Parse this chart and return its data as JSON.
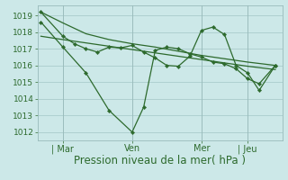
{
  "bg_color": "#cce8e8",
  "grid_color": "#aacccc",
  "line_color": "#2d6a2d",
  "xlabel": "Pression niveau de la mer( hPa )",
  "xlabel_fontsize": 8.5,
  "ylabel_fontsize": 6.5,
  "yticks": [
    1012,
    1013,
    1014,
    1015,
    1016,
    1017,
    1018,
    1019
  ],
  "ylim": [
    1011.5,
    1019.6
  ],
  "xtick_labels": [
    "| Mar",
    "Ven",
    "Mer",
    "| Jeu"
  ],
  "xtick_positions": [
    1,
    4,
    7,
    9
  ],
  "xlim": [
    -0.1,
    10.5
  ],
  "line1_x": [
    0.05,
    1,
    2,
    3,
    4,
    5,
    6,
    7,
    8,
    9,
    10.2
  ],
  "line1_y": [
    1019.2,
    1018.55,
    1017.9,
    1017.55,
    1017.3,
    1017.1,
    1016.85,
    1016.6,
    1016.4,
    1016.2,
    1016.0
  ],
  "line2_x": [
    0.05,
    1,
    2,
    3,
    4,
    5,
    6,
    7,
    8,
    9,
    10.2
  ],
  "line2_y": [
    1017.75,
    1017.55,
    1017.35,
    1017.15,
    1016.95,
    1016.75,
    1016.55,
    1016.35,
    1016.15,
    1015.95,
    1015.75
  ],
  "line3_x": [
    0.05,
    1,
    2,
    3,
    4,
    4.5,
    5,
    5.5,
    6,
    6.5,
    7,
    7.5,
    8,
    8.5,
    9,
    9.5,
    10.2
  ],
  "line3_y": [
    1018.6,
    1017.1,
    1015.55,
    1013.3,
    1012.0,
    1013.5,
    1016.9,
    1017.1,
    1017.0,
    1016.7,
    1016.5,
    1016.2,
    1016.1,
    1015.8,
    1015.2,
    1014.9,
    1016.0
  ],
  "line4_x": [
    0.05,
    1,
    1.5,
    2,
    2.5,
    3,
    3.5,
    4,
    4.5,
    5,
    5.5,
    6,
    6.5,
    7,
    7.5,
    8,
    8.5,
    9,
    9.5,
    10.2
  ],
  "line4_y": [
    1019.2,
    1017.75,
    1017.3,
    1017.0,
    1016.8,
    1017.1,
    1017.05,
    1017.2,
    1016.8,
    1016.45,
    1016.0,
    1015.95,
    1016.55,
    1018.1,
    1018.3,
    1017.85,
    1016.0,
    1015.55,
    1014.5,
    1016.0
  ]
}
